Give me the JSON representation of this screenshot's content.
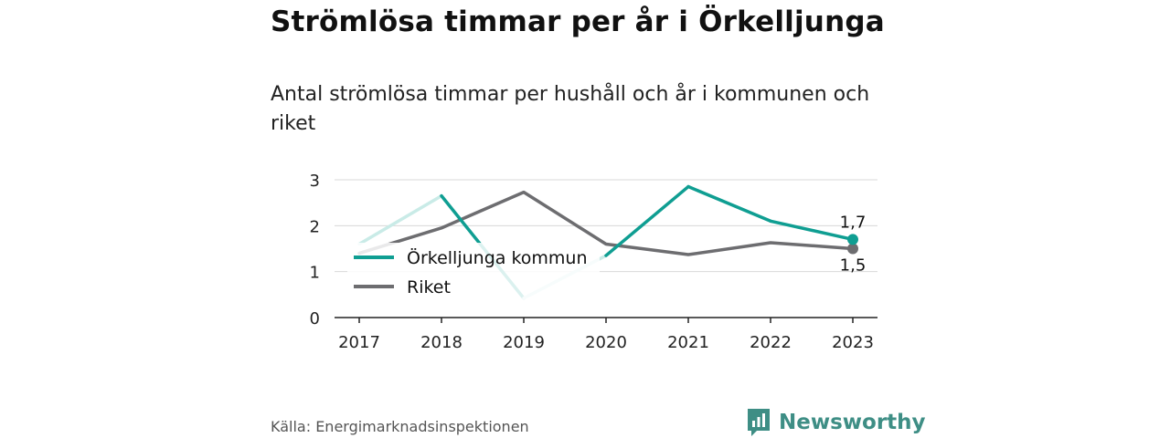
{
  "header": {
    "title": "Strömlösa timmar per år i Örkelljunga",
    "subtitle": "Antal strömlösa timmar per hushåll och år i kommunen och riket"
  },
  "footer": {
    "source": "Källa: Energimarknadsinspektionen",
    "brand": "Newsworthy"
  },
  "colors": {
    "teal": "#0f9e92",
    "teal_faded": "#c9ebe7",
    "gray": "#6d6d70",
    "grid": "#d8d8d8",
    "axis": "#222222"
  },
  "chart_data": {
    "type": "line",
    "x": [
      "2017",
      "2018",
      "2019",
      "2020",
      "2021",
      "2022",
      "2023"
    ],
    "ylim": [
      0,
      3
    ],
    "yticks": [
      "0",
      "1",
      "2",
      "3"
    ],
    "grid": true,
    "legend_position": "left, inside plot",
    "series": [
      {
        "name": "Örkelljunga kommun",
        "values": [
          1.6,
          2.65,
          0.42,
          1.35,
          2.85,
          2.1,
          1.7
        ],
        "color": "#0f9e92",
        "end_label": "1,7"
      },
      {
        "name": "Riket",
        "values": [
          1.4,
          1.95,
          2.73,
          1.6,
          1.37,
          1.63,
          1.5
        ],
        "color": "#6d6d70",
        "end_label": "1,5"
      }
    ]
  }
}
